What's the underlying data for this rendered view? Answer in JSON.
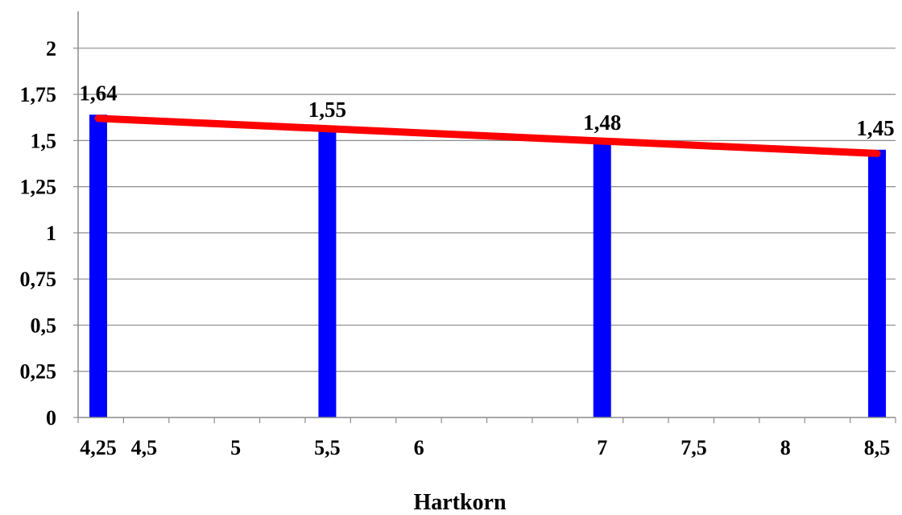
{
  "chart_data": {
    "type": "bar",
    "title": "",
    "xlabel": "Hartkorn",
    "ylabel": "",
    "ylim": [
      0,
      2.2
    ],
    "xlim": [
      4.25,
      8.5
    ],
    "x_ticks": [
      "4,25",
      "4,5",
      "5",
      "5,5",
      "6",
      "7",
      "7,5",
      "8",
      "8,5"
    ],
    "x_tick_values": [
      4.25,
      4.5,
      5,
      5.5,
      6,
      7,
      7.5,
      8,
      8.5
    ],
    "y_ticks": [
      "0",
      "0,25",
      "0,5",
      "0,75",
      "1",
      "1,25",
      "1,5",
      "1,75",
      "2"
    ],
    "y_tick_values": [
      0,
      0.25,
      0.5,
      0.75,
      1,
      1.25,
      1.5,
      1.75,
      2
    ],
    "grid": true,
    "series": [
      {
        "type": "bar",
        "color": "#0000ff",
        "x": [
          4.25,
          5.5,
          7,
          8.5
        ],
        "values": [
          1.64,
          1.55,
          1.48,
          1.45
        ],
        "data_labels": [
          "1,64",
          "1,55",
          "1,48",
          "1,45"
        ]
      },
      {
        "type": "line",
        "color": "#ff0000",
        "x": [
          4.25,
          8.5
        ],
        "values": [
          1.62,
          1.43
        ]
      }
    ]
  }
}
